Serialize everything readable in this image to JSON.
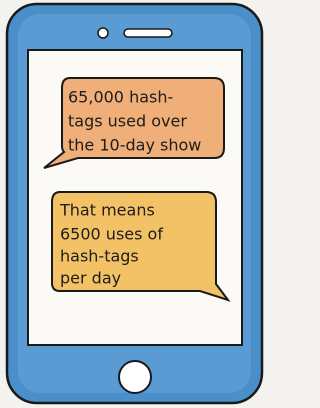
{
  "bubbles": [
    {
      "lines": [
        "65,000 hash-",
        "tags used over",
        "the 10-day show"
      ]
    },
    {
      "lines": [
        "That means",
        "6500 uses of",
        "hash-tags",
        "per day"
      ]
    }
  ]
}
